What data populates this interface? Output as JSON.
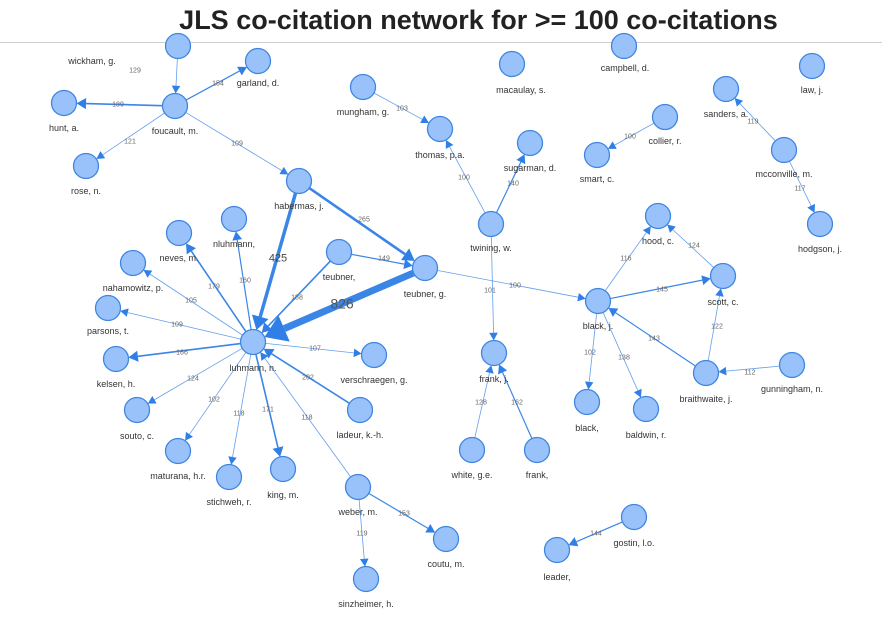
{
  "title": "JLS co-citation network for >= 100 co-citations",
  "colors": {
    "node_fill": "#99c2fa",
    "node_stroke": "#3f86e0",
    "edge": "#2f7fe6"
  },
  "nodes": [
    {
      "id": "wickham",
      "label": "wickham, g."
    },
    {
      "id": "garland",
      "label": "garland, d."
    },
    {
      "id": "hunt",
      "label": "hunt, a."
    },
    {
      "id": "foucault",
      "label": "foucault, m."
    },
    {
      "id": "rose",
      "label": "rose, n."
    },
    {
      "id": "macaulay",
      "label": "macaulay, s."
    },
    {
      "id": "campbell",
      "label": "campbell, d."
    },
    {
      "id": "law",
      "label": "law, j."
    },
    {
      "id": "mungham",
      "label": "mungham, g."
    },
    {
      "id": "thomas",
      "label": "thomas, p.a."
    },
    {
      "id": "sugarman",
      "label": "sugarman, d."
    },
    {
      "id": "collier",
      "label": "collier, r."
    },
    {
      "id": "smart",
      "label": "smart, c."
    },
    {
      "id": "sanders",
      "label": "sanders, a."
    },
    {
      "id": "mcconville",
      "label": "mcconville, m."
    },
    {
      "id": "hodgson",
      "label": "hodgson, j."
    },
    {
      "id": "habermas",
      "label": "habermas, j."
    },
    {
      "id": "twining",
      "label": "twining, w."
    },
    {
      "id": "neves",
      "label": "neves, m."
    },
    {
      "id": "nluhmann",
      "label": "nluhmann,"
    },
    {
      "id": "teubner1",
      "label": "teubner,"
    },
    {
      "id": "teubnerg",
      "label": "teubner, g."
    },
    {
      "id": "nahamowitz",
      "label": "nahamowitz, p."
    },
    {
      "id": "parsons",
      "label": "parsons, t."
    },
    {
      "id": "luhmann",
      "label": "luhmann, n."
    },
    {
      "id": "kelsen",
      "label": "kelsen, h."
    },
    {
      "id": "verschraegen",
      "label": "verschraegen, g."
    },
    {
      "id": "souto",
      "label": "souto, c."
    },
    {
      "id": "ladeur",
      "label": "ladeur, k.-h."
    },
    {
      "id": "maturana",
      "label": "maturana, h.r."
    },
    {
      "id": "stichweh",
      "label": "stichweh, r."
    },
    {
      "id": "king",
      "label": "king, m."
    },
    {
      "id": "weber",
      "label": "weber, m."
    },
    {
      "id": "coutu",
      "label": "coutu, m."
    },
    {
      "id": "sinzheimer",
      "label": "sinzheimer, h."
    },
    {
      "id": "hood",
      "label": "hood, c."
    },
    {
      "id": "scott",
      "label": "scott, c."
    },
    {
      "id": "black",
      "label": "black, j."
    },
    {
      "id": "frank",
      "label": "frank, j."
    },
    {
      "id": "black2",
      "label": "black,"
    },
    {
      "id": "baldwin",
      "label": "baldwin, r."
    },
    {
      "id": "braithwaite",
      "label": "braithwaite, j."
    },
    {
      "id": "gunningham",
      "label": "gunningham, n."
    },
    {
      "id": "whiteg",
      "label": "white, g.e."
    },
    {
      "id": "frank2",
      "label": "frank,"
    },
    {
      "id": "gostin",
      "label": "gostin, l.o."
    },
    {
      "id": "leader",
      "label": "leader,"
    }
  ],
  "edges": [
    {
      "source": "wickham",
      "target": "foucault",
      "weight": "129"
    },
    {
      "source": "foucault",
      "target": "garland",
      "weight": "154"
    },
    {
      "source": "foucault",
      "target": "hunt",
      "weight": "189"
    },
    {
      "source": "foucault",
      "target": "rose",
      "weight": "121"
    },
    {
      "source": "foucault",
      "target": "habermas",
      "weight": "109"
    },
    {
      "source": "mungham",
      "target": "thomas",
      "weight": "103"
    },
    {
      "source": "twining",
      "target": "thomas",
      "weight": "100"
    },
    {
      "source": "twining",
      "target": "sugarman",
      "weight": "140"
    },
    {
      "source": "collier",
      "target": "smart",
      "weight": "100"
    },
    {
      "source": "mcconville",
      "target": "sanders",
      "weight": "119"
    },
    {
      "source": "mcconville",
      "target": "hodgson",
      "weight": "117"
    },
    {
      "source": "habermas",
      "target": "teubnerg",
      "weight": "265"
    },
    {
      "source": "habermas",
      "target": "luhmann",
      "weight": "425"
    },
    {
      "source": "teubnerg",
      "target": "luhmann",
      "weight": "826"
    },
    {
      "source": "teubner1",
      "target": "teubnerg",
      "weight": "149"
    },
    {
      "source": "teubner1",
      "target": "luhmann",
      "weight": "188"
    },
    {
      "source": "teubnerg",
      "target": "black",
      "weight": "100"
    },
    {
      "source": "twining",
      "target": "frank",
      "weight": "101"
    },
    {
      "source": "luhmann",
      "target": "neves",
      "weight": "179"
    },
    {
      "source": "luhmann",
      "target": "nluhmann",
      "weight": "160"
    },
    {
      "source": "luhmann",
      "target": "nahamowitz",
      "weight": "105"
    },
    {
      "source": "luhmann",
      "target": "parsons",
      "weight": "109"
    },
    {
      "source": "luhmann",
      "target": "kelsen",
      "weight": "186"
    },
    {
      "source": "luhmann",
      "target": "verschraegen",
      "weight": "107"
    },
    {
      "source": "luhmann",
      "target": "souto",
      "weight": "124"
    },
    {
      "source": "ladeur",
      "target": "luhmann",
      "weight": "202"
    },
    {
      "source": "luhmann",
      "target": "maturana",
      "weight": "102"
    },
    {
      "source": "luhmann",
      "target": "stichweh",
      "weight": "118"
    },
    {
      "source": "luhmann",
      "target": "king",
      "weight": "171"
    },
    {
      "source": "weber",
      "target": "luhmann",
      "weight": "118"
    },
    {
      "source": "weber",
      "target": "coutu",
      "weight": "153"
    },
    {
      "source": "weber",
      "target": "sinzheimer",
      "weight": "119"
    },
    {
      "source": "black",
      "target": "hood",
      "weight": "116"
    },
    {
      "source": "black",
      "target": "scott",
      "weight": "145"
    },
    {
      "source": "scott",
      "target": "hood",
      "weight": "124"
    },
    {
      "source": "black",
      "target": "black2",
      "weight": "102"
    },
    {
      "source": "black",
      "target": "baldwin",
      "weight": "138"
    },
    {
      "source": "braithwaite",
      "target": "black",
      "weight": "143"
    },
    {
      "source": "braithwaite",
      "target": "scott",
      "weight": "122"
    },
    {
      "source": "gunningham",
      "target": "braithwaite",
      "weight": "112"
    },
    {
      "source": "whiteg",
      "target": "frank",
      "weight": "128"
    },
    {
      "source": "frank2",
      "target": "frank",
      "weight": "162"
    },
    {
      "source": "gostin",
      "target": "leader",
      "weight": "144"
    }
  ]
}
